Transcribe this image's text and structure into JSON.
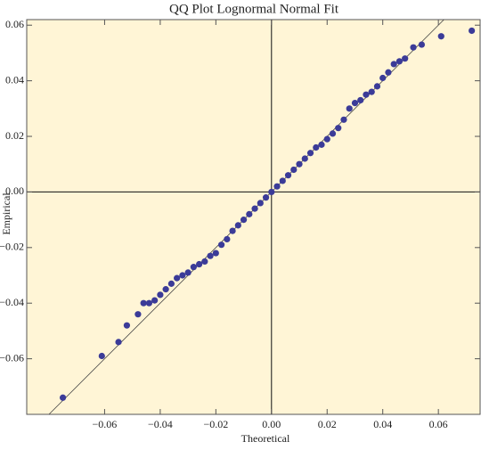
{
  "chart_data": {
    "type": "scatter",
    "title": "QQ Plot Lognormal Normal Fit",
    "xlabel": "Theoretical",
    "ylabel": "Empirical",
    "color": "#3b3b98",
    "x": [
      -0.075,
      -0.061,
      -0.055,
      -0.052,
      -0.048,
      -0.046,
      -0.044,
      -0.042,
      -0.04,
      -0.038,
      -0.036,
      -0.034,
      -0.032,
      -0.03,
      -0.028,
      -0.026,
      -0.024,
      -0.022,
      -0.02,
      -0.018,
      -0.016,
      -0.014,
      -0.012,
      -0.01,
      -0.008,
      -0.006,
      -0.004,
      -0.002,
      0.0,
      0.002,
      0.004,
      0.006,
      0.008,
      0.01,
      0.012,
      0.014,
      0.016,
      0.018,
      0.02,
      0.022,
      0.024,
      0.026,
      0.028,
      0.03,
      0.032,
      0.034,
      0.036,
      0.038,
      0.04,
      0.042,
      0.044,
      0.046,
      0.048,
      0.051,
      0.054,
      0.061,
      0.072
    ],
    "y": [
      -0.074,
      -0.059,
      -0.054,
      -0.048,
      -0.044,
      -0.04,
      -0.04,
      -0.039,
      -0.037,
      -0.035,
      -0.033,
      -0.031,
      -0.03,
      -0.029,
      -0.027,
      -0.026,
      -0.025,
      -0.023,
      -0.022,
      -0.019,
      -0.017,
      -0.014,
      -0.012,
      -0.01,
      -0.008,
      -0.006,
      -0.004,
      -0.002,
      0.0,
      0.002,
      0.004,
      0.006,
      0.008,
      0.01,
      0.012,
      0.014,
      0.016,
      0.017,
      0.019,
      0.021,
      0.023,
      0.026,
      0.03,
      0.032,
      0.033,
      0.035,
      0.036,
      0.038,
      0.041,
      0.043,
      0.046,
      0.047,
      0.048,
      0.052,
      0.053,
      0.056,
      0.058
    ],
    "xlim": [
      -0.088,
      0.075
    ],
    "ylim": [
      -0.08,
      0.062
    ],
    "xticks": [
      {
        "value": -0.06,
        "label": "−0.06"
      },
      {
        "value": -0.04,
        "label": "−0.04"
      },
      {
        "value": -0.02,
        "label": "−0.02"
      },
      {
        "value": 0,
        "label": "0.00"
      },
      {
        "value": 0.02,
        "label": "0.02"
      },
      {
        "value": 0.04,
        "label": "0.04"
      },
      {
        "value": 0.06,
        "label": "0.06"
      }
    ],
    "yticks": [
      {
        "value": -0.06,
        "label": "−0.06"
      },
      {
        "value": -0.04,
        "label": "−0.04"
      },
      {
        "value": -0.02,
        "label": "−0.02"
      },
      {
        "value": 0,
        "label": "0.00"
      },
      {
        "value": 0.02,
        "label": "0.02"
      },
      {
        "value": 0.04,
        "label": "0.04"
      },
      {
        "value": 0.06,
        "label": "0.06"
      }
    ]
  }
}
